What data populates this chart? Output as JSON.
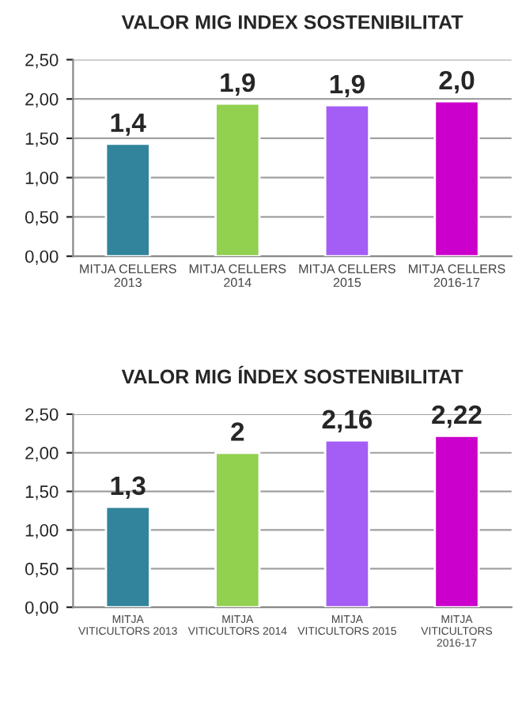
{
  "chart_data": [
    {
      "type": "bar",
      "title": "VALOR MIG INDEX SOSTENIBILITAT",
      "categories": [
        "MITJA CELLERS\n2013",
        "MITJA CELLERS\n2014",
        "MITJA CELLERS\n2015",
        "MITJA CELLERS\n2016-17"
      ],
      "values": [
        1.43,
        1.94,
        1.92,
        1.97
      ],
      "colors": [
        "#31849b",
        "#92d050",
        "#a45df5",
        "#cc00cc"
      ],
      "value_labels": [
        "1,4",
        "1,9",
        "1,9",
        "2,0"
      ],
      "ylim": [
        0,
        2.5
      ],
      "yticks": [
        {
          "value": 0,
          "label": "0,00"
        },
        {
          "value": 0.5,
          "label": "0,50"
        },
        {
          "value": 1,
          "label": "1,00"
        },
        {
          "value": 1.5,
          "label": "1,50"
        },
        {
          "value": 2,
          "label": "2,00"
        },
        {
          "value": 2.5,
          "label": "2,50"
        }
      ],
      "grid": "y",
      "legend": false
    },
    {
      "type": "bar",
      "title": "VALOR MIG ÍNDEX SOSTENIBILITAT",
      "categories": [
        "MITJA\nVITICULTORS 2013",
        "MITJA\nVITICULTORS 2014",
        "MITJA\nVITICULTORS 2015",
        "MITJA\nVITICULTORS\n2016-17"
      ],
      "values": [
        1.3,
        2,
        2.16,
        2.22
      ],
      "colors": [
        "#31849b",
        "#92d050",
        "#a45df5",
        "#cc00cc"
      ],
      "value_labels": [
        "1,3",
        "2",
        "2,16",
        "2,22"
      ],
      "ylim": [
        0,
        2.5
      ],
      "yticks": [
        {
          "value": 0,
          "label": "0,00"
        },
        {
          "value": 0.5,
          "label": "0,50"
        },
        {
          "value": 1,
          "label": "1,00"
        },
        {
          "value": 1.5,
          "label": "1,50"
        },
        {
          "value": 2,
          "label": "2,00"
        },
        {
          "value": 2.5,
          "label": "2,50"
        }
      ],
      "grid": "y",
      "legend": false
    }
  ]
}
